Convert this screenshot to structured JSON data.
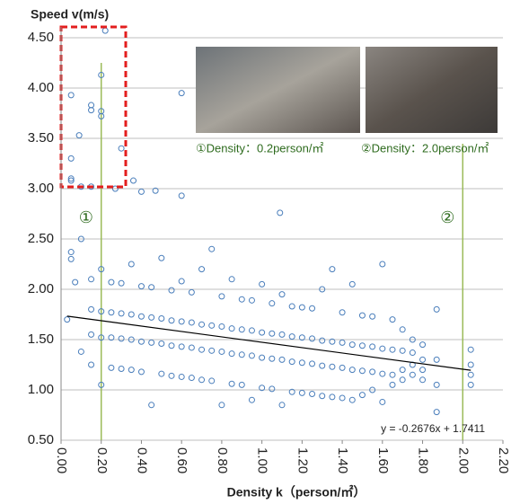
{
  "chart_data": {
    "type": "scatter",
    "y_label": "Speed v(m/s)",
    "x_label": "Density k（person/㎡）",
    "xlim": [
      0,
      2.2
    ],
    "ylim": [
      0.5,
      4.5
    ],
    "xticks": [
      {
        "value": 0,
        "label": "0.00"
      },
      {
        "value": 0.2,
        "label": "0.20"
      },
      {
        "value": 0.4,
        "label": "0.40"
      },
      {
        "value": 0.6,
        "label": "0.60"
      },
      {
        "value": 0.8,
        "label": "0.80"
      },
      {
        "value": 1.0,
        "label": "1.00"
      },
      {
        "value": 1.2,
        "label": "1.20"
      },
      {
        "value": 1.4,
        "label": "1.40"
      },
      {
        "value": 1.6,
        "label": "1.60"
      },
      {
        "value": 1.8,
        "label": "1.80"
      },
      {
        "value": 2.0,
        "label": "2.00"
      },
      {
        "value": 2.2,
        "label": "2.20"
      }
    ],
    "yticks": [
      {
        "value": 0.5,
        "label": "0.50"
      },
      {
        "value": 1.0,
        "label": "1.00"
      },
      {
        "value": 1.5,
        "label": "1.50"
      },
      {
        "value": 2.0,
        "label": "2.00"
      },
      {
        "value": 2.5,
        "label": "2.50"
      },
      {
        "value": 3.0,
        "label": "3.00"
      },
      {
        "value": 3.5,
        "label": "3.50"
      },
      {
        "value": 4.0,
        "label": "4.00"
      },
      {
        "value": 4.5,
        "label": "4.50"
      }
    ],
    "grid": true,
    "color": "#4a7ebb",
    "x": [
      0.05,
      0.05,
      0.05,
      0.05,
      0.09,
      0.15,
      0.15,
      0.2,
      0.2,
      0.2,
      0.22,
      0.3,
      0.1,
      0.15,
      0.27,
      0.36,
      0.4,
      0.47,
      0.6,
      0.6,
      1.09,
      0.05,
      0.05,
      0.1,
      0.07,
      0.03,
      0.1,
      0.15,
      0.15,
      0.15,
      0.15,
      0.2,
      0.2,
      0.2,
      0.2,
      0.25,
      0.25,
      0.25,
      0.25,
      0.3,
      0.3,
      0.3,
      0.3,
      0.35,
      0.35,
      0.35,
      0.35,
      0.4,
      0.4,
      0.4,
      0.4,
      0.45,
      0.45,
      0.45,
      0.45,
      0.5,
      0.5,
      0.5,
      0.5,
      0.55,
      0.55,
      0.55,
      0.55,
      0.6,
      0.6,
      0.6,
      0.6,
      0.65,
      0.65,
      0.65,
      0.65,
      0.7,
      0.7,
      0.7,
      0.7,
      0.75,
      0.75,
      0.75,
      0.75,
      0.8,
      0.8,
      0.8,
      0.8,
      0.85,
      0.85,
      0.85,
      0.85,
      0.9,
      0.9,
      0.9,
      0.9,
      0.95,
      0.95,
      0.95,
      0.95,
      1.0,
      1.0,
      1.0,
      1.0,
      1.05,
      1.05,
      1.05,
      1.05,
      1.1,
      1.1,
      1.1,
      1.1,
      1.15,
      1.15,
      1.15,
      1.15,
      1.2,
      1.2,
      1.2,
      1.2,
      1.25,
      1.25,
      1.25,
      1.25,
      1.3,
      1.3,
      1.3,
      1.3,
      1.35,
      1.35,
      1.35,
      1.35,
      1.4,
      1.4,
      1.4,
      1.4,
      1.45,
      1.45,
      1.45,
      1.45,
      1.5,
      1.5,
      1.5,
      1.5,
      1.55,
      1.55,
      1.55,
      1.55,
      1.6,
      1.6,
      1.6,
      1.6,
      1.65,
      1.65,
      1.65,
      1.65,
      1.7,
      1.7,
      1.7,
      1.7,
      1.75,
      1.75,
      1.75,
      1.75,
      1.8,
      1.8,
      1.8,
      1.8,
      1.87,
      1.87,
      1.87,
      1.87,
      2.04,
      2.04,
      2.04,
      2.04
    ],
    "values": [
      3.93,
      3.3,
      3.1,
      3.08,
      3.53,
      3.78,
      3.83,
      3.72,
      3.77,
      4.13,
      4.57,
      3.4,
      3.02,
      3.02,
      3.0,
      3.08,
      2.97,
      2.98,
      3.95,
      2.93,
      2.76,
      2.37,
      2.3,
      2.5,
      2.07,
      1.7,
      1.38,
      1.25,
      1.55,
      1.8,
      2.1,
      1.05,
      1.52,
      1.78,
      2.2,
      1.22,
      1.52,
      1.77,
      2.07,
      1.21,
      1.51,
      1.76,
      2.06,
      1.2,
      1.5,
      1.75,
      2.25,
      1.18,
      1.48,
      1.73,
      2.03,
      0.85,
      1.47,
      1.72,
      2.02,
      1.16,
      1.46,
      1.71,
      2.31,
      1.14,
      1.44,
      1.69,
      1.99,
      1.13,
      1.43,
      1.68,
      2.08,
      1.12,
      1.42,
      1.67,
      1.97,
      1.1,
      1.4,
      1.65,
      2.2,
      1.09,
      1.39,
      1.64,
      2.4,
      0.85,
      1.38,
      1.63,
      1.93,
      1.06,
      1.36,
      1.61,
      2.1,
      1.05,
      1.35,
      1.6,
      1.9,
      0.9,
      1.34,
      1.59,
      1.89,
      1.02,
      1.32,
      1.57,
      2.05,
      1.01,
      1.31,
      1.56,
      1.86,
      0.85,
      1.3,
      1.55,
      1.95,
      0.98,
      1.28,
      1.53,
      1.83,
      0.97,
      1.27,
      1.52,
      1.82,
      0.96,
      1.26,
      1.51,
      1.81,
      0.94,
      1.24,
      1.49,
      2.0,
      0.93,
      1.23,
      1.48,
      2.2,
      0.92,
      1.22,
      1.47,
      1.77,
      0.9,
      1.2,
      1.45,
      2.05,
      0.95,
      1.19,
      1.44,
      1.74,
      1.0,
      1.18,
      1.43,
      1.73,
      0.88,
      1.16,
      1.41,
      2.25,
      1.05,
      1.15,
      1.4,
      1.7,
      1.1,
      1.2,
      1.39,
      1.6,
      1.15,
      1.25,
      1.37,
      1.5,
      1.1,
      1.2,
      1.3,
      1.45,
      0.78,
      1.05,
      1.3,
      1.8,
      1.05,
      1.15,
      1.25,
      1.4
    ],
    "trendline": {
      "slope": -0.2676,
      "intercept": 1.7411,
      "label": "y = -0.2676x + 1.7411"
    },
    "markers": [
      {
        "x": 0.2,
        "label": "①",
        "caption": "①Density：0.2person/㎡"
      },
      {
        "x": 2.0,
        "label": "②",
        "caption": "②Density：2.0person/㎡"
      }
    ]
  }
}
